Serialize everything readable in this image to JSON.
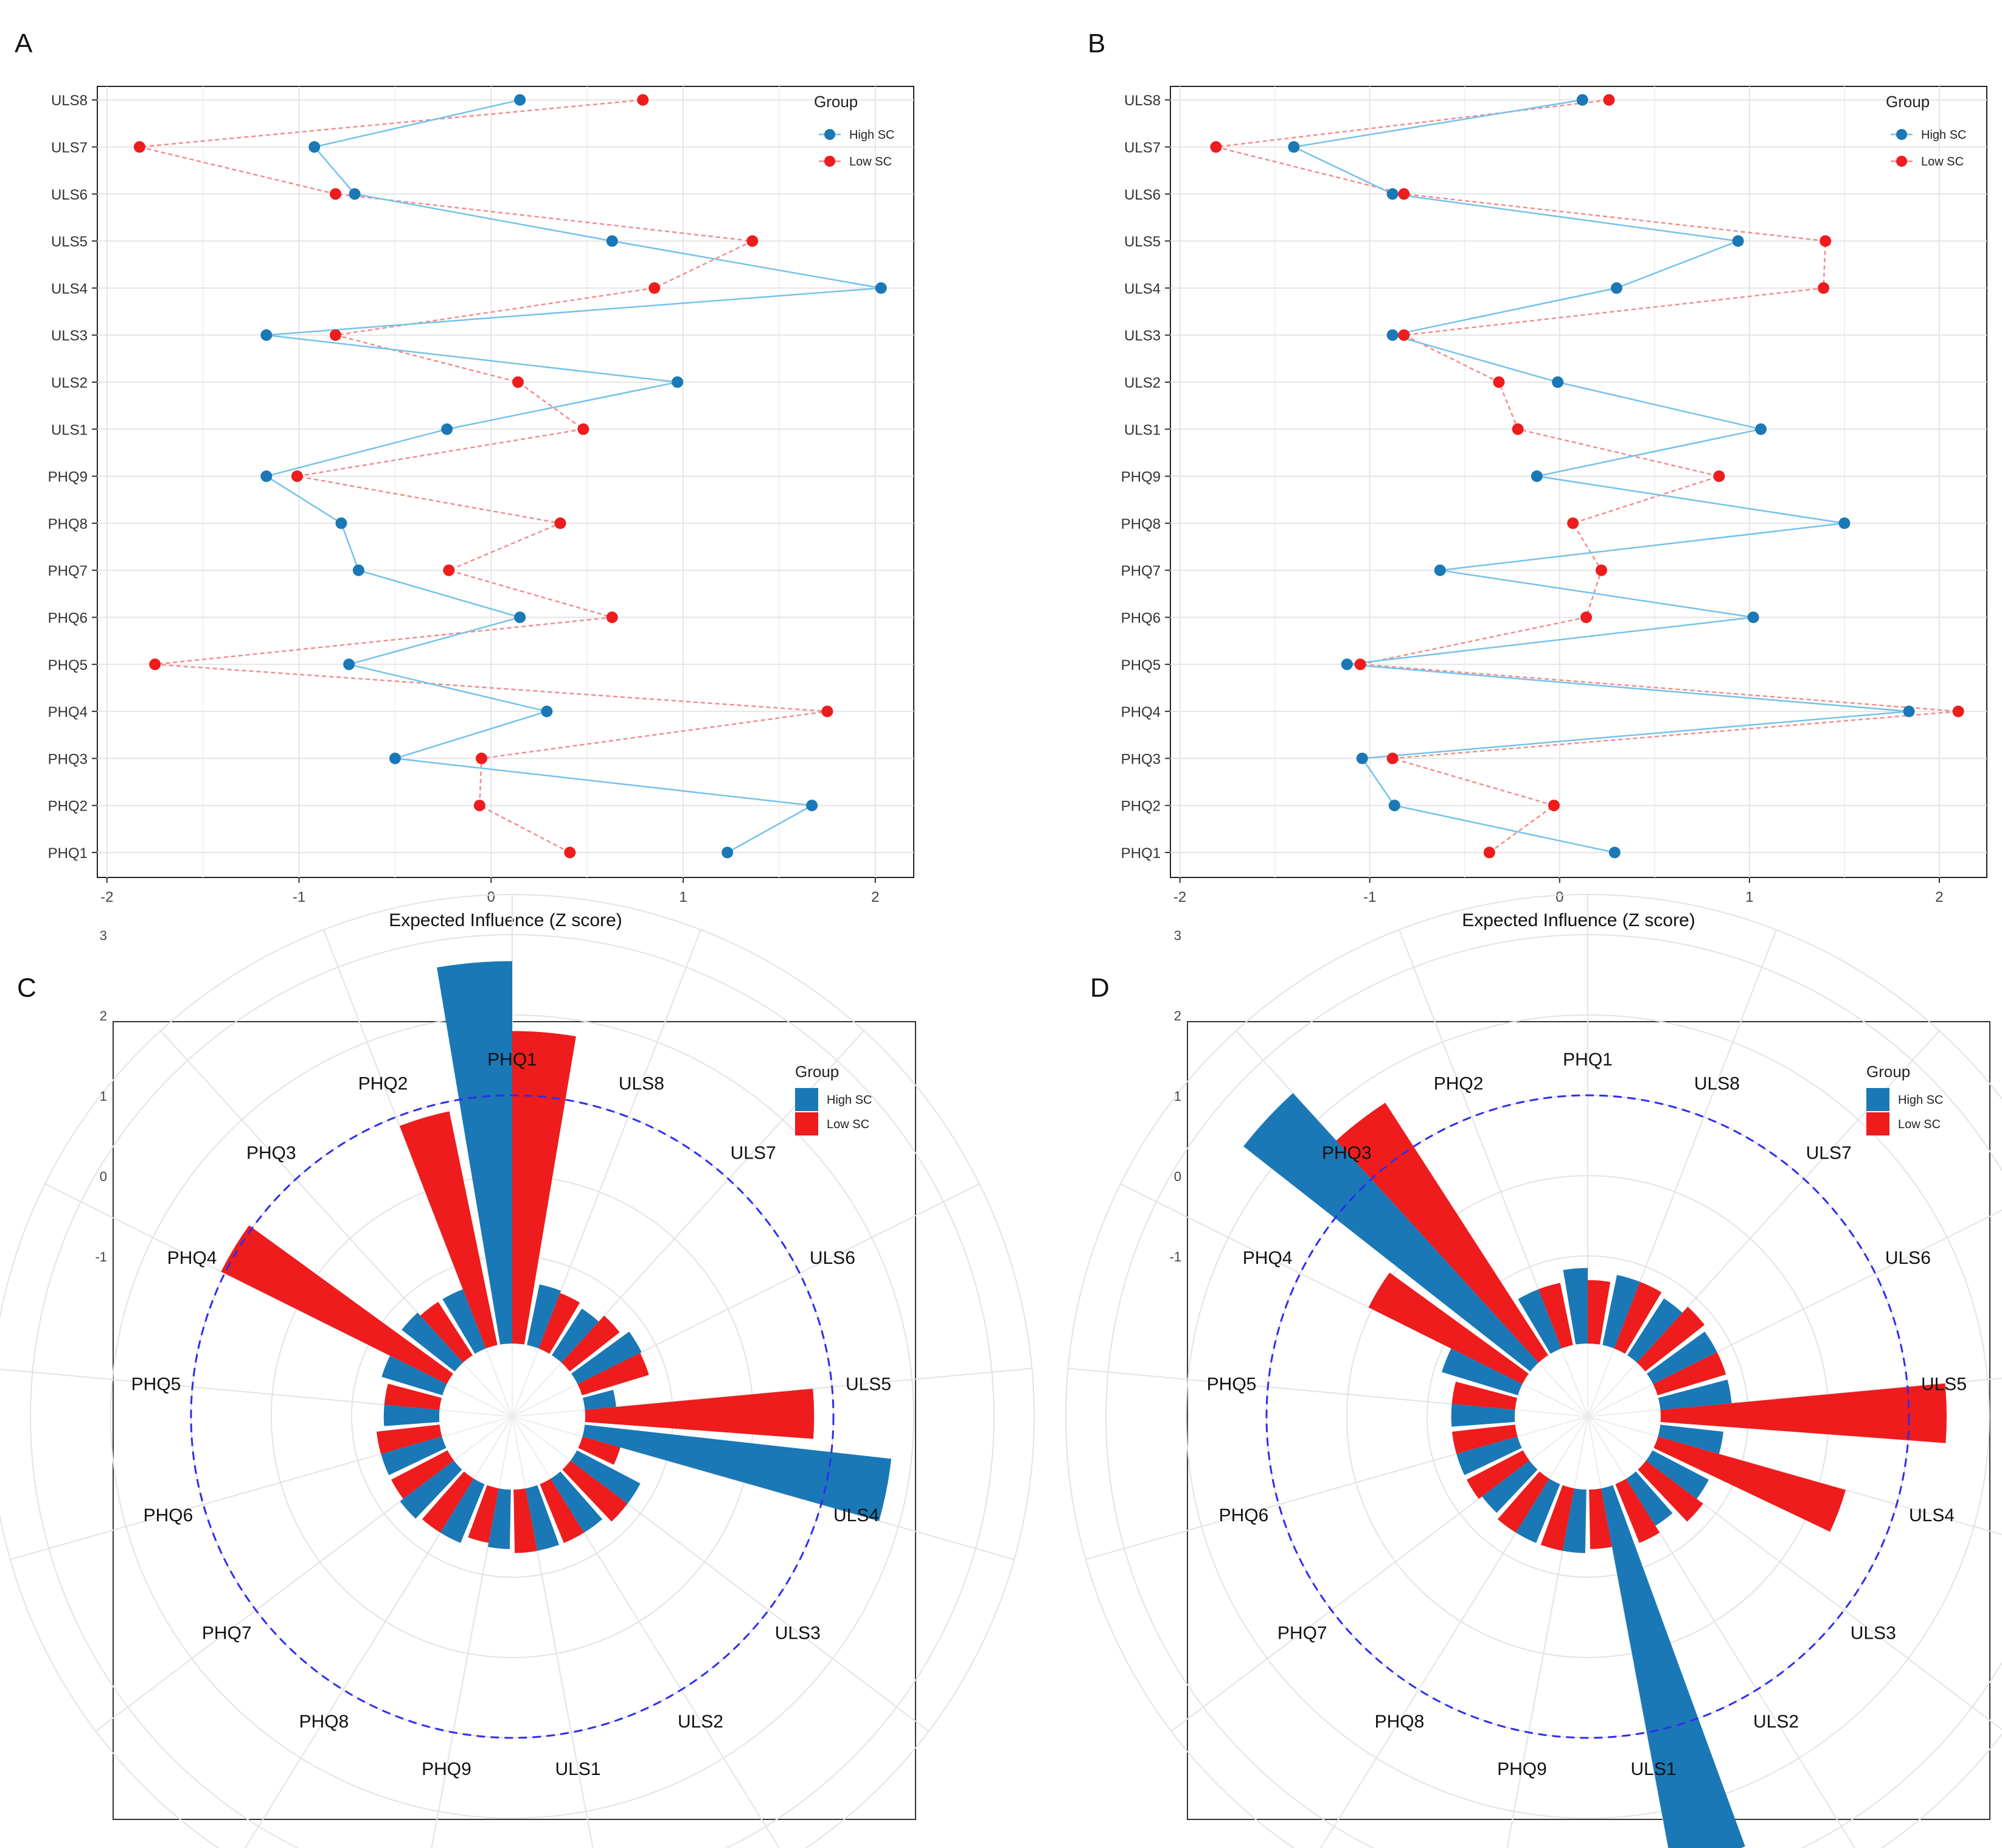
{
  "figure": {
    "panel_labels": [
      "A",
      "B",
      "C",
      "D"
    ],
    "colors": {
      "high": "#1a78b6",
      "low": "#ee1c1c",
      "high_line": "#74c2ea",
      "low_line": "#f48a8a",
      "reference_circle": "#2d2df0"
    }
  },
  "chart_data": [
    {
      "panel": "A",
      "type": "line",
      "orientation": "horizontal",
      "xlabel": "Expected Influence (Z score)",
      "xlim": [
        -2.05,
        2.2
      ],
      "xticks": [
        -2,
        -1,
        0,
        1,
        2
      ],
      "xtick_labels": [
        "-2",
        "-1",
        "0",
        "1",
        "2"
      ],
      "categories": [
        "PHQ1",
        "PHQ2",
        "PHQ3",
        "PHQ4",
        "PHQ5",
        "PHQ6",
        "PHQ7",
        "PHQ8",
        "PHQ9",
        "ULS1",
        "ULS2",
        "ULS3",
        "ULS4",
        "ULS5",
        "ULS6",
        "ULS7",
        "ULS8"
      ],
      "legend": {
        "title": "Group",
        "position": "top-right"
      },
      "series": [
        {
          "name": "High SC",
          "values": [
            1.23,
            1.67,
            -0.5,
            0.29,
            -0.74,
            0.15,
            -0.69,
            -0.78,
            -1.17,
            -0.23,
            0.97,
            -1.17,
            2.03,
            0.63,
            -0.71,
            -0.92,
            0.15
          ]
        },
        {
          "name": "Low SC",
          "values": [
            0.41,
            -0.06,
            -0.05,
            1.75,
            -1.75,
            0.63,
            -0.22,
            0.36,
            -1.01,
            0.48,
            0.14,
            -0.81,
            0.85,
            1.36,
            -0.81,
            -1.83,
            0.79
          ]
        }
      ]
    },
    {
      "panel": "B",
      "type": "line",
      "orientation": "horizontal",
      "xlabel": "Expected Influence (Z score)",
      "xlim": [
        -2.05,
        2.25
      ],
      "xticks": [
        -2,
        -1,
        0,
        1,
        2
      ],
      "xtick_labels": [
        "-2",
        "-1",
        "0",
        "1",
        "2"
      ],
      "categories": [
        "PHQ1",
        "PHQ2",
        "PHQ3",
        "PHQ4",
        "PHQ5",
        "PHQ6",
        "PHQ7",
        "PHQ8",
        "PHQ9",
        "ULS1",
        "ULS2",
        "ULS3",
        "ULS4",
        "ULS5",
        "ULS6",
        "ULS7",
        "ULS8"
      ],
      "legend": {
        "title": "Group",
        "position": "top-right"
      },
      "series": [
        {
          "name": "High SC",
          "values": [
            0.29,
            -0.87,
            -1.04,
            1.84,
            -1.12,
            1.02,
            -0.63,
            1.5,
            -0.12,
            1.06,
            -0.01,
            -0.88,
            0.3,
            0.94,
            -0.88,
            -1.4,
            0.12
          ]
        },
        {
          "name": "Low SC",
          "values": [
            -0.37,
            -0.03,
            -0.88,
            2.1,
            -1.05,
            0.14,
            0.22,
            0.07,
            0.84,
            -0.22,
            -0.32,
            -0.82,
            1.39,
            1.4,
            -0.82,
            -1.81,
            0.26
          ]
        }
      ]
    },
    {
      "panel": "C",
      "type": "bar",
      "projection": "polar",
      "categories": [
        "PHQ1",
        "ULS8",
        "ULS7",
        "ULS6",
        "ULS5",
        "ULS4",
        "ULS3",
        "ULS2",
        "ULS1",
        "PHQ9",
        "PHQ8",
        "PHQ7",
        "PHQ6",
        "PHQ5",
        "PHQ4",
        "PHQ3",
        "PHQ2"
      ],
      "rlim": [
        -3,
        3.5
      ],
      "rticks": [
        -1,
        0,
        1,
        2,
        3
      ],
      "rtick_labels": [
        "-1",
        "0",
        "1",
        "2",
        "3"
      ],
      "reference_line": 1,
      "legend": {
        "title": "Group",
        "position": "top-right"
      },
      "series": [
        {
          "name": "High SC",
          "values": [
            2.67,
            -1.32,
            -1.4,
            -1.2,
            -1.7,
            1.75,
            -1.2,
            -1.3,
            -1.3,
            -1.35,
            -1.3,
            -1.25,
            -1.3,
            -1.4,
            -1.3,
            -1.25,
            -1.3
          ]
        },
        {
          "name": "Low SC",
          "values": [
            1.8,
            -1.35,
            -1.3,
            -1.22,
            0.76,
            -1.6,
            -1.2,
            -1.3,
            -1.3,
            -1.4,
            -1.3,
            -1.3,
            -1.3,
            -1.4,
            1.05,
            -1.3,
            0.88
          ]
        }
      ]
    },
    {
      "panel": "D",
      "type": "bar",
      "projection": "polar",
      "categories": [
        "PHQ1",
        "ULS8",
        "ULS7",
        "ULS6",
        "ULS5",
        "ULS4",
        "ULS3",
        "ULS2",
        "ULS1",
        "PHQ9",
        "PHQ8",
        "PHQ7",
        "PHQ6",
        "PHQ5",
        "PHQ4",
        "PHQ3",
        "PHQ2"
      ],
      "rlim": [
        -3,
        3.5
      ],
      "rticks": [
        -1,
        0,
        1,
        2,
        3
      ],
      "rtick_labels": [
        "-1",
        "0",
        "1",
        "2",
        "3"
      ],
      "reference_line": 1,
      "legend": {
        "title": "Group",
        "position": "top-right"
      },
      "series": [
        {
          "name": "High SC",
          "values": [
            -1.15,
            -1.2,
            -1.25,
            -1.2,
            -1.2,
            -1.3,
            -1.3,
            -1.4,
            2.7,
            -1.3,
            -1.3,
            -1.35,
            -1.3,
            -1.3,
            -1.1,
            2.45,
            -1.3
          ]
        },
        {
          "name": "Low SC",
          "values": [
            -1.3,
            -1.2,
            -1.15,
            -1.2,
            1.47,
            0.34,
            -1.2,
            -1.3,
            -1.35,
            -1.3,
            -1.3,
            -1.3,
            -1.3,
            -1.3,
            0.05,
            1.65,
            -1.3
          ]
        }
      ]
    }
  ]
}
